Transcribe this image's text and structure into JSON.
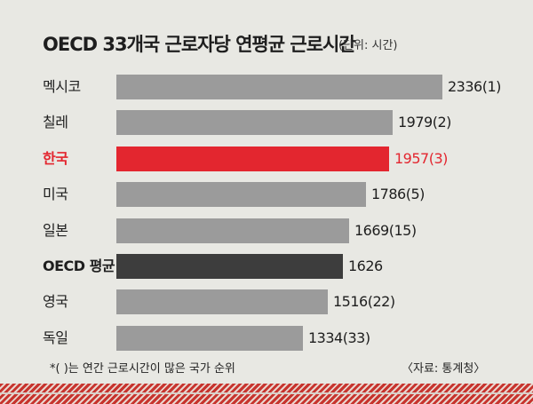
{
  "chart_data": {
    "type": "bar",
    "orientation": "horizontal",
    "title": "OECD 33개국 근로자당 연평균 근로시간",
    "unit": "(단위: 시간)",
    "categories": [
      "멕시코",
      "칠레",
      "한국",
      "미국",
      "일본",
      "OECD 평균",
      "영국",
      "독일"
    ],
    "values": [
      2336,
      1979,
      1957,
      1786,
      1669,
      1626,
      1516,
      1334
    ],
    "value_labels": [
      "2336(1)",
      "1979(2)",
      "1957(3)",
      "1786(5)",
      "1669(15)",
      "1626",
      "1516(22)",
      "1334(33)"
    ],
    "ranks": [
      1,
      2,
      3,
      5,
      15,
      null,
      22,
      33
    ],
    "highlight": "한국",
    "average": "OECD 평균",
    "colors": {
      "default": "#9b9b9b",
      "highlight": "#e3262f",
      "average": "#3d3d3d"
    },
    "grid": false,
    "legend": "none"
  },
  "footnote": "*(   )는 연간 근로시간이 많은 국가 순위",
  "source": "〈자료: 통계청〉"
}
